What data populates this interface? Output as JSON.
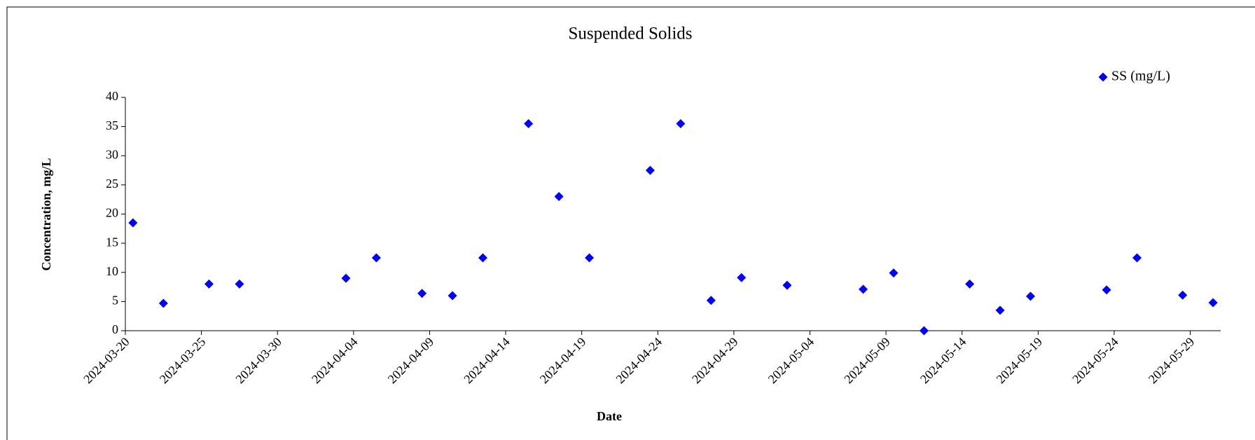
{
  "chart_data": {
    "type": "scatter",
    "title": "Suspended Solids",
    "x_label": "Date",
    "y_label": "Concentration, mg/L",
    "series": [
      {
        "name": "SS (mg/L)",
        "color": "#0000ff",
        "x": [
          "2024-03-20",
          "2024-03-22",
          "2024-03-25",
          "2024-03-27",
          "2024-04-03",
          "2024-04-05",
          "2024-04-08",
          "2024-04-10",
          "2024-04-12",
          "2024-04-15",
          "2024-04-17",
          "2024-04-19",
          "2024-04-23",
          "2024-04-25",
          "2024-04-27",
          "2024-04-29",
          "2024-05-02",
          "2024-05-07",
          "2024-05-09",
          "2024-05-11",
          "2024-05-14",
          "2024-05-16",
          "2024-05-18",
          "2024-05-23",
          "2024-05-25",
          "2024-05-28",
          "2024-05-30"
        ],
        "values": [
          18.5,
          4.7,
          8.0,
          8.0,
          9.0,
          12.5,
          6.4,
          6.0,
          12.5,
          35.5,
          23.0,
          12.5,
          27.5,
          35.5,
          5.2,
          9.1,
          7.8,
          7.1,
          9.9,
          0,
          8.0,
          3.5,
          5.9,
          7.0,
          12.5,
          6.1,
          4.8
        ]
      }
    ],
    "xlim": [
      "2024-03-20",
      "2024-05-31"
    ],
    "xticks": [
      "2024-03-20",
      "2024-03-25",
      "2024-03-30",
      "2024-04-04",
      "2024-04-09",
      "2024-04-14",
      "2024-04-19",
      "2024-04-24",
      "2024-04-29",
      "2024-05-04",
      "2024-05-09",
      "2024-05-14",
      "2024-05-19",
      "2024-05-24",
      "2024-05-29"
    ],
    "ylim": [
      0,
      40
    ],
    "yticks": [
      0,
      5,
      10,
      15,
      20,
      25,
      30,
      35,
      40
    ],
    "legend": "top-right"
  }
}
